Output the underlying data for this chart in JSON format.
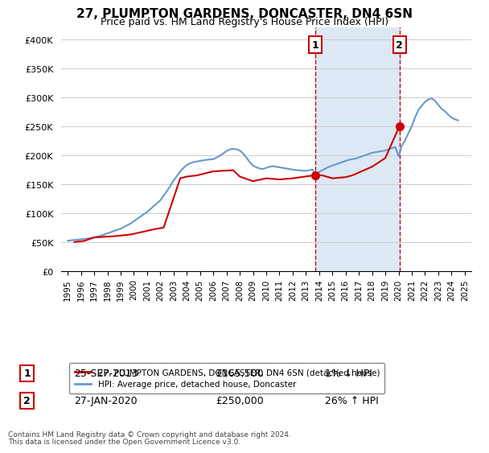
{
  "title": "27, PLUMPTON GARDENS, DONCASTER, DN4 6SN",
  "subtitle": "Price paid vs. HM Land Registry's House Price Index (HPI)",
  "legend_line1": "27, PLUMPTON GARDENS, DONCASTER, DN4 6SN (detached house)",
  "legend_line2": "HPI: Average price, detached house, Doncaster",
  "footnote1": "Contains HM Land Registry data © Crown copyright and database right 2024.",
  "footnote2": "This data is licensed under the Open Government Licence v3.0.",
  "marker1_date": "25-SEP-2013",
  "marker1_price": "£165,500",
  "marker1_hpi": "1% ↓ HPI",
  "marker1_year": 2013.73,
  "marker1_value": 165500,
  "marker2_date": "27-JAN-2020",
  "marker2_price": "£250,000",
  "marker2_hpi": "26% ↑ HPI",
  "marker2_year": 2020.07,
  "marker2_value": 250000,
  "hpi_color": "#6699cc",
  "price_color": "#cc0000",
  "shaded_color": "#dde8f5",
  "vline_color": "#cc0000",
  "ylim": [
    0,
    420000
  ],
  "yticks": [
    0,
    50000,
    100000,
    150000,
    200000,
    250000,
    300000,
    350000,
    400000
  ],
  "ytick_labels": [
    "£0",
    "£50K",
    "£100K",
    "£150K",
    "£200K",
    "£250K",
    "£300K",
    "£350K",
    "£400K"
  ],
  "xlim_start": 1994.5,
  "xlim_end": 2025.5,
  "xticks": [
    1995,
    1996,
    1997,
    1998,
    1999,
    2000,
    2001,
    2002,
    2003,
    2004,
    2005,
    2006,
    2007,
    2008,
    2009,
    2010,
    2011,
    2012,
    2013,
    2014,
    2015,
    2016,
    2017,
    2018,
    2019,
    2020,
    2021,
    2022,
    2023,
    2024,
    2025
  ],
  "hpi_years": [
    1995.0,
    1995.25,
    1995.5,
    1995.75,
    1996.0,
    1996.25,
    1996.5,
    1996.75,
    1997.0,
    1997.25,
    1997.5,
    1997.75,
    1998.0,
    1998.25,
    1998.5,
    1998.75,
    1999.0,
    1999.25,
    1999.5,
    1999.75,
    2000.0,
    2000.25,
    2000.5,
    2000.75,
    2001.0,
    2001.25,
    2001.5,
    2001.75,
    2002.0,
    2002.25,
    2002.5,
    2002.75,
    2003.0,
    2003.25,
    2003.5,
    2003.75,
    2004.0,
    2004.25,
    2004.5,
    2004.75,
    2005.0,
    2005.25,
    2005.5,
    2005.75,
    2006.0,
    2006.25,
    2006.5,
    2006.75,
    2007.0,
    2007.25,
    2007.5,
    2007.75,
    2008.0,
    2008.25,
    2008.5,
    2008.75,
    2009.0,
    2009.25,
    2009.5,
    2009.75,
    2010.0,
    2010.25,
    2010.5,
    2010.75,
    2011.0,
    2011.25,
    2011.5,
    2011.75,
    2012.0,
    2012.25,
    2012.5,
    2012.75,
    2013.0,
    2013.25,
    2013.5,
    2013.75,
    2014.0,
    2014.25,
    2014.5,
    2014.75,
    2015.0,
    2015.25,
    2015.5,
    2015.75,
    2016.0,
    2016.25,
    2016.5,
    2016.75,
    2017.0,
    2017.25,
    2017.5,
    2017.75,
    2018.0,
    2018.25,
    2018.5,
    2018.75,
    2019.0,
    2019.25,
    2019.5,
    2019.75,
    2020.0,
    2020.25,
    2020.5,
    2020.75,
    2021.0,
    2021.25,
    2021.5,
    2021.75,
    2022.0,
    2022.25,
    2022.5,
    2022.75,
    2023.0,
    2023.25,
    2023.5,
    2023.75,
    2024.0,
    2024.25,
    2024.5
  ],
  "hpi_values": [
    52000,
    53000,
    53500,
    54000,
    55000,
    55500,
    56000,
    57000,
    58000,
    59500,
    61000,
    63000,
    65000,
    67000,
    69000,
    71000,
    73000,
    76000,
    79000,
    82000,
    86000,
    90000,
    94000,
    98000,
    102000,
    107000,
    112000,
    117000,
    122000,
    130000,
    138000,
    147000,
    156000,
    164000,
    172000,
    178000,
    183000,
    186000,
    188000,
    189000,
    190000,
    191000,
    192000,
    192500,
    193000,
    196000,
    199000,
    203000,
    207000,
    210000,
    211000,
    210000,
    208000,
    203000,
    196000,
    188000,
    182000,
    179000,
    177000,
    176000,
    178000,
    180000,
    181000,
    180000,
    179000,
    178000,
    177000,
    176000,
    175000,
    174000,
    174000,
    173000,
    173000,
    174000,
    175000,
    167000,
    171000,
    174000,
    177000,
    180000,
    182000,
    184000,
    186000,
    188000,
    190000,
    192000,
    193000,
    194000,
    196000,
    198000,
    200000,
    202000,
    204000,
    205000,
    206000,
    207000,
    208000,
    210000,
    212000,
    214000,
    198000,
    216000,
    226000,
    238000,
    250000,
    265000,
    278000,
    285000,
    292000,
    296000,
    298000,
    294000,
    287000,
    280000,
    276000,
    270000,
    265000,
    262000,
    260000
  ],
  "price_years": [
    1995.5,
    1996.25,
    1997.0,
    1998.5,
    1999.75,
    2000.75,
    2001.5,
    2002.25,
    2003.5,
    2004.0,
    2004.75,
    2006.0,
    2007.5,
    2008.0,
    2009.0,
    2010.0,
    2011.0,
    2012.0,
    2013.73,
    2014.25,
    2015.0,
    2016.0,
    2016.5,
    2017.0,
    2018.0,
    2019.0,
    2020.07
  ],
  "price_values": [
    50000,
    52000,
    58000,
    60000,
    63000,
    68000,
    72000,
    75000,
    160000,
    163000,
    165000,
    172000,
    174000,
    163000,
    155000,
    160000,
    158000,
    160000,
    165500,
    165000,
    160000,
    162000,
    165000,
    170000,
    180000,
    195000,
    250000
  ]
}
